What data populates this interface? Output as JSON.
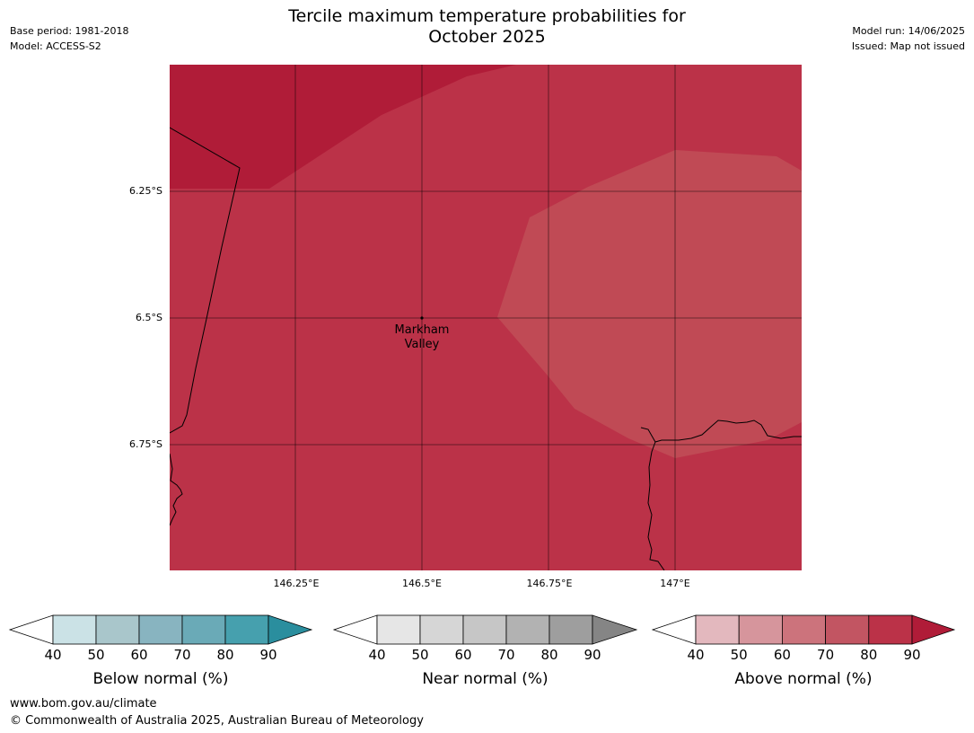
{
  "header": {
    "title_line1": "Tercile maximum temperature probabilities for",
    "title_line2": "October 2025",
    "base_period": "Base period: 1981-2018",
    "model": "Model: ACCESS-S2",
    "model_run": "Model run: 14/06/2025",
    "issued": "Issued: Map not issued"
  },
  "map": {
    "latitude_labels": [
      "6.25°S",
      "6.5°S",
      "6.75°S"
    ],
    "longitude_labels": [
      "146.25°E",
      "146.5°E",
      "146.75°E",
      "147°E"
    ],
    "place": {
      "name_line1": "Markham",
      "name_line2": "Valley"
    },
    "shading": {
      "above_normal_80_90_color": "#b01c38",
      "above_normal_70_80_color": "#bb3248",
      "above_normal_60_70_color": "#c04a55",
      "boundary_color": "#000000"
    }
  },
  "legends": [
    {
      "name": "Below normal (%)",
      "ticks": [
        "40",
        "50",
        "60",
        "70",
        "80",
        "90"
      ],
      "low_color": "#ffffff",
      "colors": [
        "#cbe2e6",
        "#a9c6cb",
        "#88b4c0",
        "#6aaab7",
        "#46a0ae"
      ],
      "high_color": "#2a8e9e"
    },
    {
      "name": "Near normal (%)",
      "ticks": [
        "40",
        "50",
        "60",
        "70",
        "80",
        "90"
      ],
      "low_color": "#ffffff",
      "colors": [
        "#e6e6e6",
        "#d6d6d6",
        "#c6c6c6",
        "#b2b2b2",
        "#9e9e9e"
      ],
      "high_color": "#858585"
    },
    {
      "name": "Above normal (%)",
      "ticks": [
        "40",
        "50",
        "60",
        "70",
        "80",
        "90"
      ],
      "low_color": "#ffffff",
      "colors": [
        "#e3b8be",
        "#d6959c",
        "#cc737c",
        "#c25562",
        "#bb3248"
      ],
      "high_color": "#b01c38"
    }
  ],
  "footer": {
    "url": "www.bom.gov.au/climate",
    "copyright": "© Commonwealth of Australia 2025, Australian Bureau of Meteorology"
  }
}
